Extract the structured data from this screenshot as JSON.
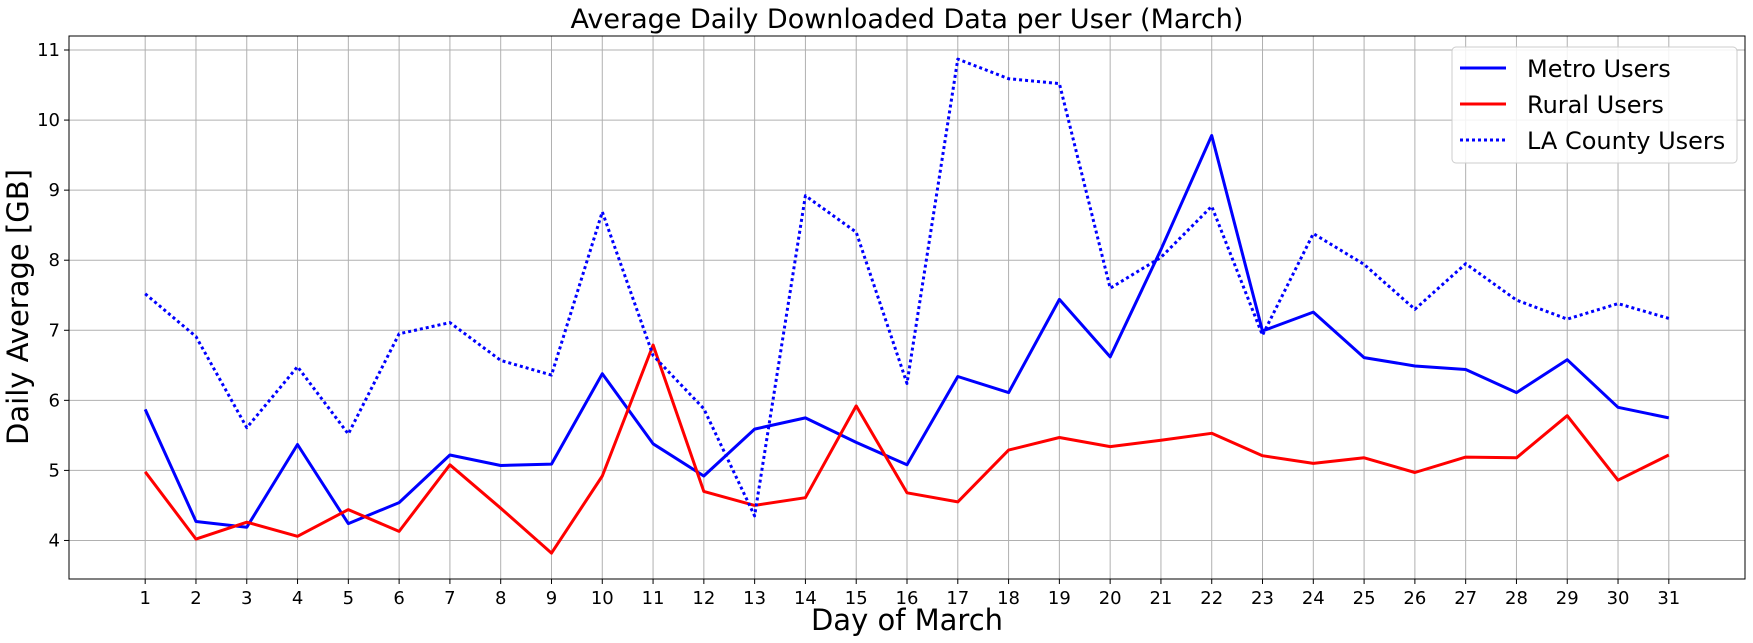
{
  "chart_data": {
    "type": "line",
    "title": "Average Daily Downloaded Data per User (March)",
    "xlabel": "Day of March",
    "ylabel": "Daily Average [GB]",
    "x": [
      1,
      2,
      3,
      4,
      5,
      6,
      7,
      8,
      9,
      10,
      11,
      12,
      13,
      14,
      15,
      16,
      17,
      18,
      19,
      20,
      21,
      22,
      23,
      24,
      25,
      26,
      27,
      28,
      29,
      30,
      31
    ],
    "xlim": [
      -0.5,
      32.5
    ],
    "ylim": [
      3.45,
      11.2
    ],
    "yticks": [
      4,
      5,
      6,
      7,
      8,
      9,
      10,
      11
    ],
    "grid": true,
    "legend_position": "top-right",
    "series": [
      {
        "name": "Metro Users",
        "color": "#0000ff",
        "line_style": "solid",
        "values": [
          5.87,
          4.27,
          4.19,
          5.37,
          4.24,
          4.54,
          5.22,
          5.07,
          5.09,
          6.38,
          5.38,
          4.92,
          5.59,
          5.75,
          5.4,
          5.08,
          6.34,
          6.11,
          7.44,
          6.62,
          8.15,
          9.78,
          6.99,
          7.26,
          6.61,
          6.49,
          6.44,
          6.11,
          6.58,
          5.9,
          5.75
        ]
      },
      {
        "name": "Rural Users",
        "color": "#ff0000",
        "line_style": "solid",
        "values": [
          4.98,
          4.02,
          4.26,
          4.06,
          4.44,
          4.13,
          5.08,
          4.46,
          3.82,
          4.92,
          6.79,
          4.7,
          4.5,
          4.61,
          5.92,
          4.68,
          4.55,
          5.29,
          5.47,
          5.34,
          5.43,
          5.53,
          5.21,
          5.1,
          5.18,
          4.97,
          5.19,
          5.18,
          5.78,
          4.86,
          5.22
        ]
      },
      {
        "name": "LA County Users",
        "color": "#0000ff",
        "line_style": "dotted",
        "values": [
          7.52,
          6.91,
          5.61,
          6.48,
          5.52,
          6.95,
          7.11,
          6.57,
          6.36,
          8.69,
          6.64,
          5.88,
          4.35,
          8.92,
          8.4,
          6.24,
          10.87,
          10.59,
          10.52,
          7.6,
          8.04,
          8.77,
          6.93,
          8.38,
          7.94,
          7.3,
          7.95,
          7.43,
          7.16,
          7.38,
          7.17
        ]
      }
    ]
  }
}
